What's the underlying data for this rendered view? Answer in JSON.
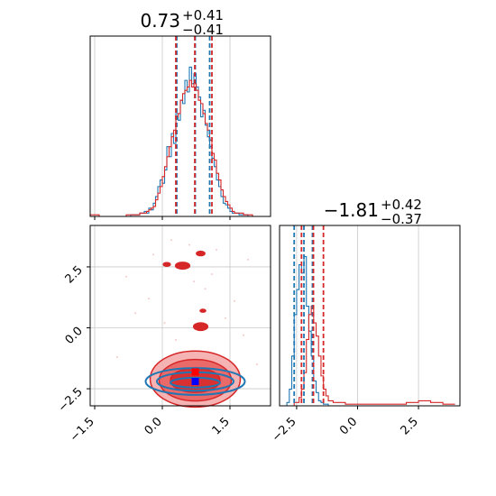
{
  "chart_data": [
    {
      "type": "histogram",
      "panel": "marginal-param-1",
      "title": {
        "main": "0.73",
        "sup": "+0.41",
        "sub": "−0.41"
      },
      "xlim": [
        -1.6,
        2.4
      ],
      "grid": true,
      "x_ticks": [
        -1.5,
        0.0,
        1.5
      ],
      "quantile_lines": {
        "blue": [
          0.32,
          0.73,
          1.05
        ],
        "red": [
          0.3,
          0.72,
          1.1
        ]
      },
      "series": [
        {
          "color": "#1f77b4",
          "bins_x": [
            -1.6,
            -1.5,
            -1.4,
            -1.3,
            -1.2,
            -1.1,
            -1.0,
            -0.9,
            -0.8,
            -0.7,
            -0.6,
            -0.5,
            -0.45,
            -0.4,
            -0.35,
            -0.3,
            -0.25,
            -0.2,
            -0.15,
            -0.1,
            -0.05,
            0.0,
            0.05,
            0.1,
            0.15,
            0.2,
            0.25,
            0.3,
            0.35,
            0.4,
            0.45,
            0.5,
            0.55,
            0.6,
            0.65,
            0.7,
            0.75,
            0.8,
            0.85,
            0.9,
            0.95,
            1.0,
            1.05,
            1.1,
            1.15,
            1.2,
            1.25,
            1.3,
            1.35,
            1.4,
            1.45,
            1.5,
            1.55,
            1.6,
            1.7,
            1.8,
            1.9,
            2.0,
            2.2,
            2.4
          ],
          "counts": [
            0,
            0,
            0,
            0,
            0,
            0,
            0,
            0,
            0,
            0.01,
            0.01,
            0.02,
            0.02,
            0.03,
            0.02,
            0.05,
            0.04,
            0.08,
            0.12,
            0.18,
            0.22,
            0.2,
            0.28,
            0.42,
            0.36,
            0.5,
            0.44,
            0.62,
            0.58,
            0.7,
            0.68,
            0.82,
            0.75,
            0.9,
            0.8,
            0.86,
            0.78,
            0.72,
            0.6,
            0.64,
            0.55,
            0.48,
            0.42,
            0.35,
            0.3,
            0.22,
            0.18,
            0.12,
            0.08,
            0.07,
            0.05,
            0.03,
            0.02,
            0.02,
            0.01,
            0.01,
            0,
            0,
            0
          ]
        },
        {
          "color": "#d62728",
          "bins_x": [
            -1.6,
            -1.5,
            -1.4,
            -1.3,
            -1.2,
            -1.1,
            -1.0,
            -0.9,
            -0.8,
            -0.7,
            -0.6,
            -0.5,
            -0.45,
            -0.4,
            -0.35,
            -0.3,
            -0.25,
            -0.2,
            -0.15,
            -0.1,
            -0.05,
            0.0,
            0.05,
            0.1,
            0.15,
            0.2,
            0.25,
            0.3,
            0.35,
            0.4,
            0.45,
            0.5,
            0.55,
            0.6,
            0.65,
            0.7,
            0.75,
            0.8,
            0.85,
            0.9,
            0.95,
            1.0,
            1.05,
            1.1,
            1.15,
            1.2,
            1.25,
            1.3,
            1.35,
            1.4,
            1.45,
            1.5,
            1.55,
            1.6,
            1.7,
            1.8,
            1.9,
            2.0,
            2.2,
            2.4
          ],
          "counts": [
            0.01,
            0.01,
            0,
            0,
            0,
            0,
            0,
            0,
            0.01,
            0.01,
            0.01,
            0.02,
            0.02,
            0.02,
            0.03,
            0.04,
            0.05,
            0.06,
            0.1,
            0.14,
            0.18,
            0.24,
            0.3,
            0.36,
            0.42,
            0.48,
            0.52,
            0.6,
            0.62,
            0.7,
            0.74,
            0.76,
            0.78,
            0.82,
            0.78,
            0.8,
            0.76,
            0.7,
            0.68,
            0.62,
            0.56,
            0.52,
            0.46,
            0.38,
            0.34,
            0.26,
            0.22,
            0.16,
            0.12,
            0.09,
            0.07,
            0.05,
            0.03,
            0.02,
            0.02,
            0.01,
            0.01,
            0,
            0
          ]
        }
      ]
    },
    {
      "type": "histogram",
      "panel": "marginal-param-2",
      "title": {
        "main": "−1.81",
        "sup": "+0.42",
        "sub": "−0.37"
      },
      "xlim": [
        -3.2,
        4.2
      ],
      "grid": true,
      "x_ticks": [
        -2.5,
        0.0,
        2.5
      ],
      "quantile_lines": {
        "blue": [
          -2.6,
          -2.2,
          -1.85
        ],
        "red": [
          -2.3,
          -1.81,
          -1.4
        ]
      },
      "series": [
        {
          "color": "#1f77b4",
          "bins_x": [
            -3.2,
            -3.0,
            -2.9,
            -2.8,
            -2.7,
            -2.6,
            -2.5,
            -2.4,
            -2.3,
            -2.2,
            -2.1,
            -2.0,
            -1.9,
            -1.8,
            -1.7,
            -1.6,
            -1.5,
            -1.4,
            -1.2,
            -1.0
          ],
          "counts": [
            0,
            0,
            0.02,
            0.1,
            0.3,
            0.55,
            0.7,
            0.85,
            0.8,
            0.9,
            0.6,
            0.45,
            0.3,
            0.15,
            0.08,
            0.03,
            0.02,
            0.01,
            0,
            0
          ]
        },
        {
          "color": "#d62728",
          "bins_x": [
            -3.2,
            -3.0,
            -2.8,
            -2.6,
            -2.4,
            -2.3,
            -2.2,
            -2.1,
            -2.0,
            -1.9,
            -1.8,
            -1.7,
            -1.6,
            -1.5,
            -1.4,
            -1.3,
            -1.2,
            -1.0,
            -0.5,
            0.0,
            0.5,
            1.0,
            1.5,
            2.0,
            2.5,
            3.0,
            3.5,
            4.0
          ],
          "counts": [
            0,
            0,
            0,
            0.02,
            0.05,
            0.1,
            0.2,
            0.4,
            0.55,
            0.6,
            0.5,
            0.42,
            0.3,
            0.18,
            0.1,
            0.06,
            0.03,
            0.02,
            0.01,
            0.01,
            0.01,
            0.01,
            0.01,
            0.02,
            0.03,
            0.02,
            0.01,
            0
          ]
        }
      ]
    },
    {
      "type": "contour",
      "panel": "joint-param-1-vs-param-2",
      "xlim": [
        -1.6,
        2.4
      ],
      "ylim": [
        -3.2,
        4.2
      ],
      "grid": true,
      "x_ticks": [
        -1.5,
        0.0,
        1.5
      ],
      "y_ticks": [
        -2.5,
        0.0,
        2.5
      ],
      "series": [
        {
          "color": "#d62728",
          "center": [
            0.73,
            -1.81
          ],
          "contours": [
            {
              "rx": 1.0,
              "ry": 1.15,
              "cy": -2.1
            },
            {
              "rx": 0.8,
              "ry": 0.85,
              "cy": -2.15
            },
            {
              "rx": 0.55,
              "ry": 0.5,
              "cy": -2.15
            }
          ],
          "islands": [
            {
              "x": 0.45,
              "y": 2.55,
              "rx": 0.2,
              "ry": 0.18
            },
            {
              "x": 0.85,
              "y": 3.05,
              "rx": 0.12,
              "ry": 0.12
            },
            {
              "x": 0.1,
              "y": 2.6,
              "rx": 0.1,
              "ry": 0.1
            },
            {
              "x": 0.9,
              "y": 0.7,
              "rx": 0.08,
              "ry": 0.08
            },
            {
              "x": 0.85,
              "y": 0.05,
              "rx": 0.2,
              "ry": 0.2
            }
          ]
        },
        {
          "color": "#1f77b4",
          "center": [
            0.73,
            -2.2
          ],
          "contours": [
            {
              "rx": 1.1,
              "ry": 0.55,
              "cy": -2.2
            },
            {
              "rx": 0.85,
              "ry": 0.38,
              "cy": -2.2
            },
            {
              "rx": 0.55,
              "ry": 0.2,
              "cy": -2.25
            }
          ]
        }
      ]
    }
  ]
}
